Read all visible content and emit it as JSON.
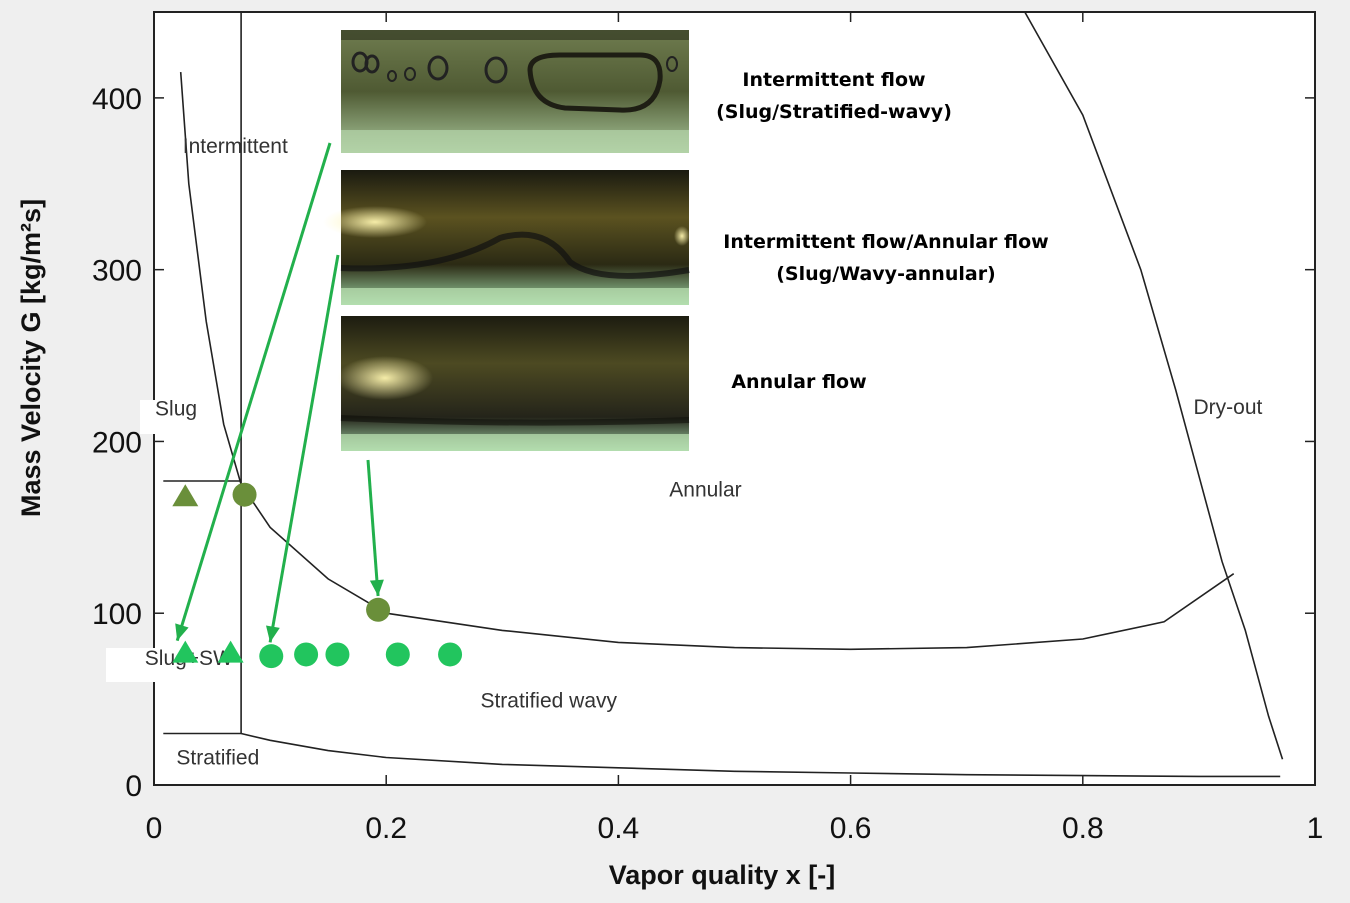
{
  "chart_data": {
    "type": "scatter",
    "xlabel": "Vapor quality x [-]",
    "ylabel": "Mass Velocity G [kg/m²s]",
    "xlim": [
      0,
      1
    ],
    "ylim": [
      0,
      450
    ],
    "xticks": [
      0,
      0.2,
      0.4,
      0.6,
      0.8,
      1
    ],
    "yticks": [
      0,
      100,
      200,
      300,
      400
    ],
    "xtick_labels": [
      "0",
      "0.2",
      "0.4",
      "0.6",
      "0.8",
      "1"
    ],
    "ytick_labels": [
      "0",
      "100",
      "200",
      "300",
      "400"
    ],
    "grid": false,
    "boundaries": [
      {
        "id": "slug-intermittent-to-annular",
        "points": [
          [
            0.023,
            415
          ],
          [
            0.03,
            350
          ],
          [
            0.045,
            270
          ],
          [
            0.06,
            210
          ],
          [
            0.075,
            175
          ],
          [
            0.1,
            150
          ],
          [
            0.15,
            120
          ],
          [
            0.2,
            100
          ],
          [
            0.3,
            90
          ],
          [
            0.4,
            83
          ],
          [
            0.5,
            80
          ],
          [
            0.6,
            79
          ],
          [
            0.7,
            80
          ],
          [
            0.8,
            85
          ],
          [
            0.87,
            95
          ],
          [
            0.93,
            123
          ]
        ]
      },
      {
        "id": "dry-out",
        "points": [
          [
            0.75,
            450
          ],
          [
            0.8,
            390
          ],
          [
            0.85,
            300
          ],
          [
            0.88,
            230
          ],
          [
            0.9,
            180
          ],
          [
            0.92,
            130
          ],
          [
            0.94,
            90
          ],
          [
            0.96,
            40
          ],
          [
            0.972,
            15
          ]
        ]
      },
      {
        "id": "stratified-wavy-to-stratified",
        "points": [
          [
            0.075,
            30
          ],
          [
            0.1,
            26
          ],
          [
            0.15,
            20
          ],
          [
            0.2,
            16
          ],
          [
            0.3,
            12
          ],
          [
            0.4,
            10
          ],
          [
            0.5,
            8
          ],
          [
            0.6,
            7
          ],
          [
            0.7,
            6
          ],
          [
            0.8,
            5.5
          ],
          [
            0.9,
            5
          ],
          [
            0.97,
            5
          ]
        ]
      },
      {
        "id": "vertical-divider",
        "points": [
          [
            0.075,
            450
          ],
          [
            0.075,
            30
          ]
        ]
      },
      {
        "id": "slug-divider",
        "points": [
          [
            0.008,
            177
          ],
          [
            0.075,
            177
          ]
        ]
      },
      {
        "id": "stratified-divider",
        "points": [
          [
            0.008,
            30
          ],
          [
            0.075,
            30
          ]
        ]
      }
    ],
    "series": [
      {
        "marker": "triangle",
        "color": "#6a8f3a",
        "points": [
          [
            0.027,
            168
          ]
        ]
      },
      {
        "marker": "circle",
        "color": "#6a8f3a",
        "points": [
          [
            0.078,
            169
          ],
          [
            0.193,
            102
          ]
        ]
      },
      {
        "marker": "triangle",
        "color": "#22c55e",
        "points": [
          [
            0.027,
            77
          ],
          [
            0.066,
            77
          ]
        ]
      },
      {
        "marker": "circle",
        "color": "#22c55e",
        "points": [
          [
            0.101,
            75
          ],
          [
            0.131,
            76
          ],
          [
            0.158,
            76
          ],
          [
            0.21,
            76
          ],
          [
            0.255,
            76
          ]
        ]
      }
    ],
    "region_labels": [
      {
        "key": "intermittent",
        "text": "Intermittent",
        "x": 0.07,
        "y": 368
      },
      {
        "key": "slug",
        "text": "Slug",
        "x": 0.019,
        "y": 215
      },
      {
        "key": "slug_sw",
        "text": "Slug+SW",
        "x": 0.03,
        "y": 70
      },
      {
        "key": "stratified",
        "text": "Stratified",
        "x": 0.055,
        "y": 12
      },
      {
        "key": "stratified_wavy",
        "text": "Stratified wavy",
        "x": 0.34,
        "y": 45
      },
      {
        "key": "annular",
        "text": "Annular",
        "x": 0.475,
        "y": 168
      },
      {
        "key": "dry_out",
        "text": "Dry-out",
        "x": 0.925,
        "y": 216
      }
    ],
    "photo_captions": [
      {
        "lines": [
          "Intermittent flow",
          "(Slug/Stratified-wavy)"
        ]
      },
      {
        "lines": [
          "Intermittent flow/Annular flow",
          "(Slug/Wavy-annular)"
        ]
      },
      {
        "lines": [
          "Annular flow"
        ]
      }
    ],
    "arrows": [
      {
        "from_photo": 1,
        "to": [
          0.02,
          84
        ]
      },
      {
        "from_photo": 2,
        "to": [
          0.1,
          83
        ]
      },
      {
        "from_photo": 3,
        "to": [
          0.193,
          110
        ]
      }
    ]
  }
}
